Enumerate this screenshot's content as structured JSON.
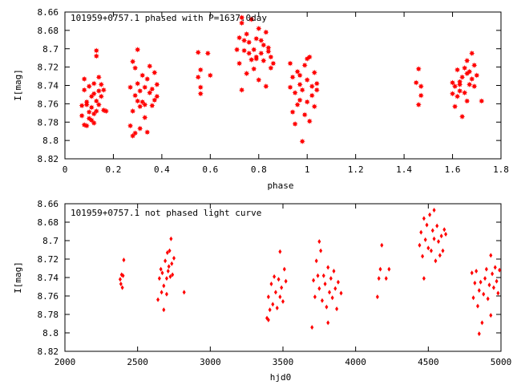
{
  "chart_data": [
    {
      "type": "scatter",
      "title": "101959+0757.1 phased with P=1637.0day",
      "xlabel": "phase",
      "ylabel": "I[mag]",
      "xlim": [
        0,
        1.8
      ],
      "ylim": [
        8.66,
        8.82
      ],
      "y_inverted": true,
      "xticks": [
        "0",
        "0.2",
        "0.4",
        "0.6",
        "0.8",
        "1",
        "1.2",
        "1.4",
        "1.6",
        "1.8"
      ],
      "yticks": [
        "8.66",
        "8.68",
        "8.7",
        "8.72",
        "8.74",
        "8.76",
        "8.78",
        "8.8",
        "8.82"
      ],
      "series": [
        {
          "color": "#ff0000",
          "marker": "star",
          "x": [
            0.07,
            0.07,
            0.08,
            0.08,
            0.08,
            0.09,
            0.09,
            0.09,
            0.1,
            0.1,
            0.1,
            0.11,
            0.11,
            0.11,
            0.12,
            0.12,
            0.12,
            0.13,
            0.13,
            0.13,
            0.14,
            0.14,
            0.14,
            0.15,
            0.15,
            0.16,
            0.16,
            0.17,
            0.12,
            0.13,
            0.28,
            0.27,
            0.28,
            0.28,
            0.29,
            0.29,
            0.29,
            0.3,
            0.3,
            0.3,
            0.31,
            0.31,
            0.31,
            0.32,
            0.32,
            0.33,
            0.33,
            0.34,
            0.34,
            0.35,
            0.35,
            0.36,
            0.36,
            0.37,
            0.37,
            0.38,
            0.38,
            0.27,
            0.33,
            0.55,
            0.55,
            0.56,
            0.56,
            0.56,
            0.59,
            0.6,
            0.71,
            0.72,
            0.72,
            0.73,
            0.73,
            0.74,
            0.74,
            0.75,
            0.75,
            0.76,
            0.76,
            0.77,
            0.77,
            0.78,
            0.78,
            0.79,
            0.79,
            0.8,
            0.8,
            0.81,
            0.81,
            0.82,
            0.82,
            0.83,
            0.83,
            0.84,
            0.84,
            0.85,
            0.85,
            0.86,
            0.73,
            0.79,
            0.93,
            0.93,
            0.94,
            0.94,
            0.95,
            0.95,
            0.96,
            0.96,
            0.97,
            0.97,
            0.98,
            0.98,
            0.99,
            0.99,
            1.0,
            1.0,
            1.01,
            1.01,
            1.02,
            1.02,
            1.03,
            1.03,
            1.04,
            1.04,
            0.97,
            1.0,
            1.45,
            1.46,
            1.46,
            1.47,
            1.47,
            1.6,
            1.6,
            1.61,
            1.61,
            1.62,
            1.62,
            1.63,
            1.63,
            1.64,
            1.64,
            1.65,
            1.65,
            1.66,
            1.66,
            1.67,
            1.67,
            1.68,
            1.68,
            1.69,
            1.69,
            1.7,
            1.72,
            1.63,
            1.66
          ],
          "y": [
            8.762,
            8.773,
            8.745,
            8.783,
            8.733,
            8.761,
            8.784,
            8.758,
            8.741,
            8.769,
            8.776,
            8.752,
            8.778,
            8.764,
            8.749,
            8.771,
            8.738,
            8.757,
            8.768,
            8.702,
            8.746,
            8.761,
            8.731,
            8.739,
            8.752,
            8.745,
            8.767,
            8.768,
            8.781,
            8.708,
            8.795,
            8.742,
            8.768,
            8.714,
            8.751,
            8.792,
            8.721,
            8.738,
            8.757,
            8.701,
            8.746,
            8.763,
            8.787,
            8.729,
            8.758,
            8.742,
            8.775,
            8.733,
            8.791,
            8.748,
            8.719,
            8.762,
            8.744,
            8.726,
            8.756,
            8.752,
            8.739,
            8.784,
            8.761,
            8.704,
            8.731,
            8.749,
            8.742,
            8.723,
            8.705,
            8.729,
            8.701,
            8.688,
            8.716,
            8.672,
            8.745,
            8.702,
            8.691,
            8.684,
            8.727,
            8.705,
            8.693,
            8.668,
            8.712,
            8.701,
            8.722,
            8.689,
            8.709,
            8.678,
            8.734,
            8.691,
            8.705,
            8.713,
            8.696,
            8.741,
            8.682,
            8.703,
            8.699,
            8.721,
            8.709,
            8.716,
            8.666,
            8.711,
            8.716,
            8.742,
            8.731,
            8.769,
            8.748,
            8.782,
            8.725,
            8.761,
            8.739,
            8.756,
            8.801,
            8.745,
            8.772,
            8.718,
            8.758,
            8.734,
            8.709,
            8.779,
            8.741,
            8.751,
            8.726,
            8.763,
            8.738,
            8.745,
            8.729,
            8.711,
            8.737,
            8.761,
            8.722,
            8.741,
            8.751,
            8.737,
            8.749,
            8.741,
            8.763,
            8.723,
            8.752,
            8.739,
            8.746,
            8.774,
            8.731,
            8.748,
            8.721,
            8.757,
            8.713,
            8.739,
            8.725,
            8.705,
            8.733,
            8.741,
            8.718,
            8.729,
            8.757,
            8.736,
            8.727
          ],
          "_note": "sampled approximation of plotted points"
        }
      ]
    },
    {
      "type": "scatter",
      "title": "101959+0757.1 not phased light curve",
      "xlabel": "hjd0",
      "ylabel": "I[mag]",
      "xlim": [
        2000,
        5000
      ],
      "ylim": [
        8.66,
        8.82
      ],
      "y_inverted": true,
      "xticks": [
        "2000",
        "2500",
        "3000",
        "3500",
        "4000",
        "4500",
        "5000"
      ],
      "yticks": [
        "8.66",
        "8.68",
        "8.7",
        "8.72",
        "8.74",
        "8.76",
        "8.78",
        "8.8",
        "8.82"
      ],
      "series": [
        {
          "color": "#ff0000",
          "marker": "diamond",
          "x": [
            2380,
            2385,
            2390,
            2395,
            2400,
            2405,
            2640,
            2650,
            2660,
            2665,
            2670,
            2680,
            2690,
            2700,
            2705,
            2710,
            2715,
            2720,
            2725,
            2730,
            2735,
            2740,
            2750,
            2680,
            2700,
            2820,
            3390,
            3400,
            3410,
            3420,
            3430,
            3440,
            3450,
            3460,
            3470,
            3480,
            3490,
            3500,
            3510,
            3520,
            3400,
            3480,
            3700,
            3710,
            3720,
            3730,
            3740,
            3750,
            3760,
            3770,
            3780,
            3790,
            3800,
            3810,
            3820,
            3830,
            3840,
            3850,
            3860,
            3870,
            3880,
            3900,
            3750,
            3810,
            4150,
            4160,
            4170,
            4180,
            4210,
            4230,
            4440,
            4450,
            4460,
            4470,
            4480,
            4490,
            4500,
            4510,
            4520,
            4530,
            4540,
            4550,
            4560,
            4570,
            4580,
            4590,
            4600,
            4610,
            4620,
            4470,
            4540,
            4800,
            4810,
            4820,
            4830,
            4840,
            4850,
            4860,
            4870,
            4880,
            4890,
            4900,
            4910,
            4920,
            4930,
            4940,
            4950,
            4960,
            4970,
            4980,
            4990,
            4850,
            4930
          ],
          "y": [
            8.742,
            8.747,
            8.737,
            8.751,
            8.738,
            8.721,
            8.764,
            8.741,
            8.731,
            8.756,
            8.735,
            8.749,
            8.722,
            8.741,
            8.713,
            8.733,
            8.728,
            8.711,
            8.739,
            8.698,
            8.725,
            8.737,
            8.719,
            8.775,
            8.758,
            8.756,
            8.784,
            8.761,
            8.775,
            8.747,
            8.769,
            8.739,
            8.756,
            8.773,
            8.742,
            8.761,
            8.751,
            8.766,
            8.731,
            8.744,
            8.786,
            8.712,
            8.794,
            8.743,
            8.761,
            8.722,
            8.738,
            8.752,
            8.711,
            8.765,
            8.738,
            8.747,
            8.772,
            8.729,
            8.756,
            8.741,
            8.762,
            8.733,
            8.752,
            8.774,
            8.745,
            8.757,
            8.701,
            8.789,
            8.761,
            8.741,
            8.731,
            8.705,
            8.741,
            8.731,
            8.705,
            8.691,
            8.717,
            8.676,
            8.699,
            8.683,
            8.708,
            8.672,
            8.711,
            8.689,
            8.698,
            8.722,
            8.684,
            8.701,
            8.716,
            8.695,
            8.711,
            8.688,
            8.693,
            8.741,
            8.667,
            8.735,
            8.762,
            8.746,
            8.733,
            8.771,
            8.754,
            8.745,
            8.789,
            8.758,
            8.741,
            8.731,
            8.763,
            8.748,
            8.781,
            8.736,
            8.751,
            8.729,
            8.744,
            8.757,
            8.732,
            8.801,
            8.716
          ],
          "_note": "sampled approximation of plotted points"
        }
      ]
    }
  ]
}
